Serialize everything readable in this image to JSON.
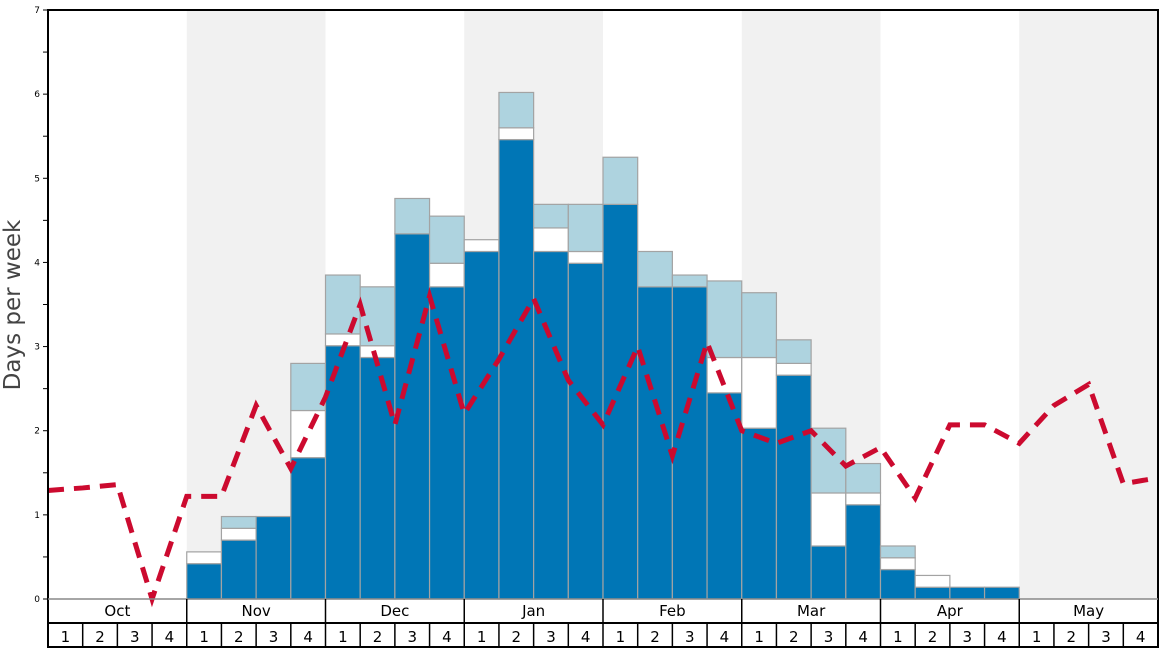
{
  "chart_data": {
    "type": "bar",
    "ylabel": "Days per week",
    "ylim": [
      0,
      7
    ],
    "yticks": [
      "0",
      "1",
      "2",
      "3",
      "4",
      "5",
      "6",
      "7"
    ],
    "months": [
      "Oct",
      "Nov",
      "Dec",
      "Jan",
      "Feb",
      "Mar",
      "Apr",
      "May"
    ],
    "weeks_per_month": [
      "1",
      "2",
      "3",
      "4"
    ],
    "shaded_months": [
      "Nov",
      "Jan",
      "Mar",
      "May"
    ],
    "colors": {
      "base": "#0076b6",
      "middle": "#ffffff",
      "top": "#aed3df",
      "line": "#cc0a2f",
      "shade": "#f1f1f1",
      "edge": "#a3a3a3"
    },
    "stacked_bars": {
      "note": "cumulative tops per week (32 weeks Oct-May)",
      "base": [
        0,
        0,
        0,
        0,
        0.42,
        0.7,
        0.98,
        1.68,
        3.01,
        2.87,
        4.34,
        3.71,
        4.13,
        5.46,
        4.13,
        3.99,
        4.69,
        3.71,
        3.71,
        2.45,
        2.03,
        2.66,
        0.63,
        1.12,
        0.35,
        0.14,
        0.14,
        0.14,
        0,
        0,
        0,
        0
      ],
      "middle": [
        0,
        0,
        0,
        0,
        0.56,
        0.84,
        0.98,
        2.24,
        3.15,
        3.01,
        4.34,
        3.99,
        4.27,
        5.6,
        4.41,
        4.13,
        4.69,
        3.71,
        3.71,
        2.87,
        2.87,
        2.8,
        1.26,
        1.26,
        0.49,
        0.28,
        0.14,
        0.14,
        0,
        0,
        0,
        0
      ],
      "top": [
        0,
        0,
        0,
        0,
        0.56,
        0.98,
        0.98,
        2.8,
        3.85,
        3.71,
        4.76,
        4.55,
        4.27,
        6.02,
        4.69,
        4.69,
        5.25,
        4.13,
        3.85,
        3.78,
        3.64,
        3.08,
        2.03,
        1.61,
        0.63,
        0.28,
        0.14,
        0.14,
        0,
        0,
        0,
        0
      ]
    },
    "dashed_line": [
      1.29,
      1.32,
      1.36,
      0,
      1.22,
      1.22,
      2.3,
      1.55,
      2.4,
      3.5,
      2.07,
      3.6,
      2.2,
      2.85,
      3.57,
      2.6,
      2.07,
      3.0,
      1.7,
      3.05,
      2.0,
      1.85,
      2.0,
      1.58,
      1.8,
      1.2,
      2.07,
      2.07,
      1.85,
      2.3,
      2.55,
      1.37,
      1.44
    ]
  }
}
